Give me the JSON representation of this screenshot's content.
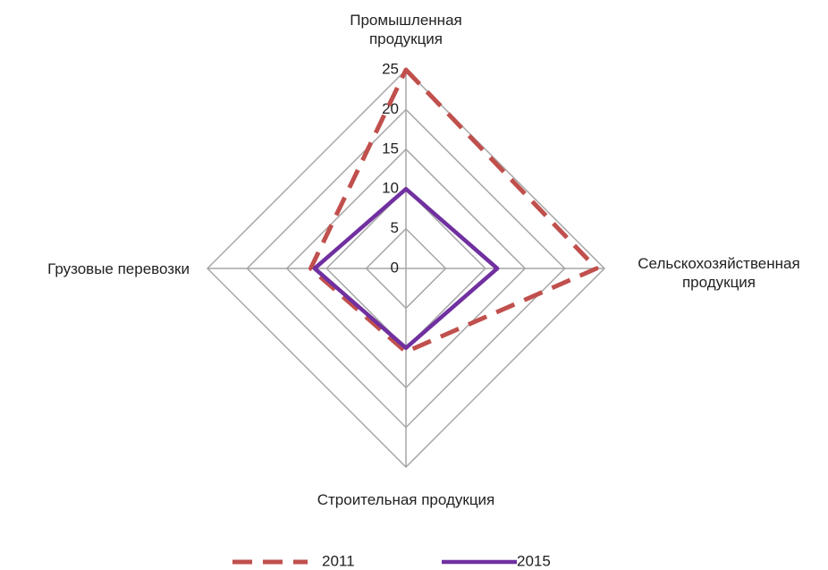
{
  "chart_data": {
    "type": "radar",
    "categories": [
      "Промышленная продукция",
      "Сельскохозяйственная продукция",
      "Строительная продукция",
      "Грузовые перевозки"
    ],
    "series": [
      {
        "name": "2011",
        "color": "#c0504d",
        "dash": true,
        "values": [
          25,
          24,
          10.5,
          12
        ]
      },
      {
        "name": "2015",
        "color": "#7030a0",
        "dash": false,
        "values": [
          10,
          11.5,
          10,
          11.5
        ]
      }
    ],
    "ylim": [
      0,
      25
    ],
    "yticks": [
      0,
      5,
      10,
      15,
      20,
      25
    ],
    "grid": true,
    "legend": "bottom"
  }
}
